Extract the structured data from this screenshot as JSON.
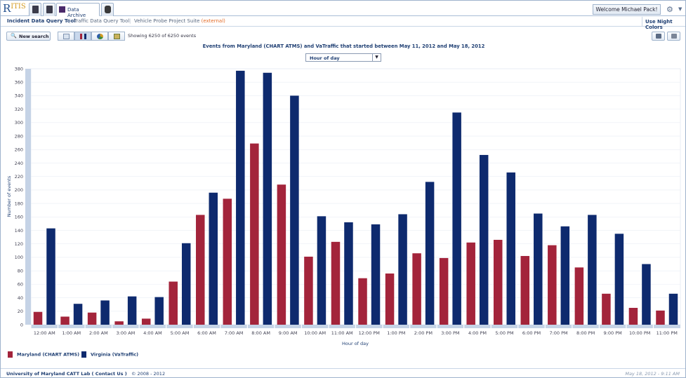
{
  "app": {
    "logo_main": "R",
    "logo_rest": "ITIS",
    "tab_archive": "Data Archive",
    "welcome": "Welcome Michael Pack!",
    "night_colors": "Use Night Colors"
  },
  "nav": {
    "incident": "Incident Data Query Tool",
    "traffic": "Traffic Data Query Tool",
    "probe": "Vehicle Probe Project Suite",
    "external": "(external)",
    "separator": "|"
  },
  "toolbar": {
    "new_search": "New search",
    "showing": "Showing 6250 of 6250 events"
  },
  "dropdown": {
    "selected": "Hour of day",
    "arrow": "▼"
  },
  "footer": {
    "org": "University of Maryland CATT Lab",
    "contact": "( Contact Us )",
    "copyright": "© 2008 - 2012",
    "timestamp": "May 18, 2012 - 9:11 AM"
  },
  "colors": {
    "maryland": "#a3243b",
    "virginia": "#0e2a6e",
    "axis_strip": "#c5d3e6"
  },
  "icons": {
    "search": "search-icon",
    "gear": "gear-icon",
    "save": "save-icon",
    "print": "print-icon"
  },
  "chart_data": {
    "type": "bar",
    "title": "Events from Maryland (CHART ATMS) and VaTraffic that started between May 11, 2012 and May 18, 2012",
    "xlabel": "Hour of day",
    "ylabel": "Number of events",
    "ylim": [
      0,
      380
    ],
    "yticks": [
      0,
      20,
      40,
      60,
      80,
      100,
      120,
      140,
      160,
      180,
      200,
      220,
      240,
      260,
      280,
      300,
      320,
      340,
      360,
      380
    ],
    "grid": true,
    "legend_position": "bottom-left",
    "categories": [
      "12:00 AM",
      "1:00 AM",
      "2:00 AM",
      "3:00 AM",
      "4:00 AM",
      "5:00 AM",
      "6:00 AM",
      "7:00 AM",
      "8:00 AM",
      "9:00 AM",
      "10:00 AM",
      "11:00 AM",
      "12:00 PM",
      "1:00 PM",
      "2:00 PM",
      "3:00 PM",
      "4:00 PM",
      "5:00 PM",
      "6:00 PM",
      "7:00 PM",
      "8:00 PM",
      "9:00 PM",
      "10:00 PM",
      "11:00 PM"
    ],
    "series": [
      {
        "name": "Maryland (CHART ATMS)",
        "color": "#a3243b",
        "values": [
          19,
          12,
          18,
          5,
          9,
          64,
          163,
          187,
          269,
          208,
          101,
          123,
          69,
          76,
          106,
          99,
          122,
          126,
          102,
          118,
          85,
          46,
          25,
          21
        ]
      },
      {
        "name": "Virginia (VaTraffic)",
        "color": "#0e2a6e",
        "values": [
          143,
          31,
          36,
          42,
          41,
          121,
          196,
          377,
          374,
          340,
          161,
          152,
          149,
          164,
          212,
          315,
          252,
          226,
          165,
          146,
          163,
          135,
          90,
          46
        ]
      }
    ]
  }
}
